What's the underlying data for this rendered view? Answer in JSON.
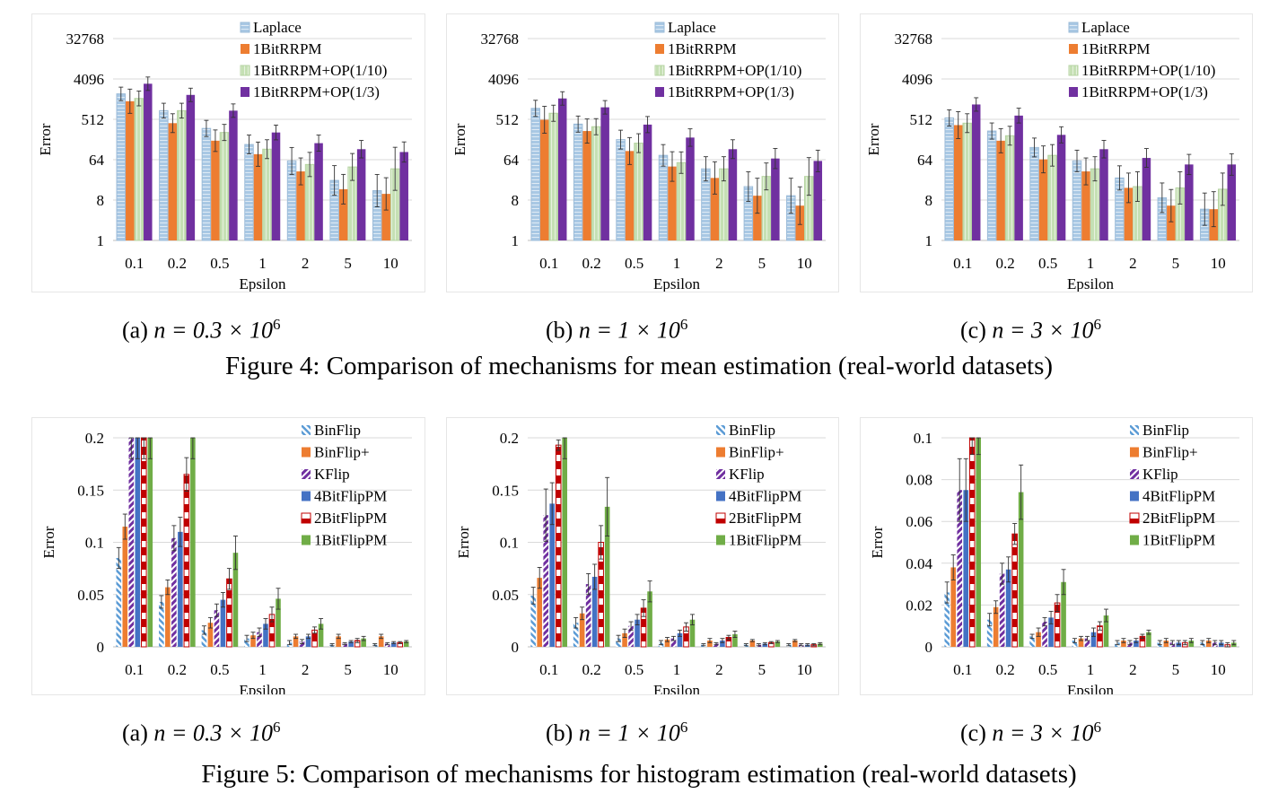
{
  "figure4": {
    "caption": "Figure 4: Comparison of mechanisms for mean estimation (real-world datasets)",
    "subcaptions": [
      {
        "label": "(a)",
        "math": "n = 0.3 × 10",
        "exp": "6"
      },
      {
        "label": "(b)",
        "math": "n = 1 × 10",
        "exp": "6"
      },
      {
        "label": "(c)",
        "math": "n = 3 × 10",
        "exp": "6"
      }
    ]
  },
  "figure5": {
    "caption": "Figure 5: Comparison of mechanisms for histogram estimation (real-world datasets)",
    "subcaptions": [
      {
        "label": "(a)",
        "math": "n = 0.3 × 10",
        "exp": "6"
      },
      {
        "label": "(b)",
        "math": "n = 1 × 10",
        "exp": "6"
      },
      {
        "label": "(c)",
        "math": "n = 3 × 10",
        "exp": "6"
      }
    ]
  },
  "colors": {
    "laplace": "#a9c8e4",
    "orange": "#ed7d31",
    "green_light": "#c5e0b4",
    "purple": "#7030a0",
    "binflip": "#5b9bd5",
    "kflip": "#7030a0",
    "blue": "#4472c4",
    "red": "#c00000",
    "green": "#70ad47"
  },
  "chart_data": [
    {
      "id": "fig4a",
      "type": "bar",
      "scale": "log2",
      "title": "",
      "xlabel": "Epsilon",
      "ylabel": "Error",
      "categories": [
        "0.1",
        "0.2",
        "0.5",
        "1",
        "2",
        "5",
        "10"
      ],
      "yticks": [
        "1",
        "8",
        "64",
        "512",
        "4096",
        "32768"
      ],
      "ylim": [
        1,
        32768
      ],
      "legend": "top-right",
      "series": [
        {
          "name": "Laplace",
          "values": [
            1900,
            800,
            320,
            140,
            60,
            22,
            13
          ],
          "err": [
            0.5,
            0.55,
            0.6,
            0.7,
            1.0,
            1.1,
            1.2
          ]
        },
        {
          "name": "1BitRRPM",
          "values": [
            1300,
            420,
            170,
            85,
            35,
            14,
            11
          ],
          "err": [
            0.9,
            0.7,
            0.8,
            0.9,
            1.0,
            1.1,
            1.2
          ]
        },
        {
          "name": "1BitRRPM+OP(1/10)",
          "values": [
            1500,
            800,
            260,
            110,
            50,
            44,
            40
          ],
          "err": [
            0.55,
            0.55,
            0.6,
            0.7,
            0.9,
            1.0,
            1.6
          ]
        },
        {
          "name": "1BitRRPM+OP(1/3)",
          "values": [
            3200,
            1800,
            800,
            260,
            150,
            110,
            95
          ],
          "err": [
            0.5,
            0.5,
            0.5,
            0.55,
            0.6,
            0.65,
            0.75
          ]
        }
      ]
    },
    {
      "id": "fig4b",
      "type": "bar",
      "scale": "log2",
      "title": "",
      "xlabel": "Epsilon",
      "ylabel": "Error",
      "categories": [
        "0.1",
        "0.2",
        "0.5",
        "1",
        "2",
        "5",
        "10"
      ],
      "yticks": [
        "1",
        "8",
        "64",
        "512",
        "4096",
        "32768"
      ],
      "ylim": [
        1,
        32768
      ],
      "legend": "top-right",
      "series": [
        {
          "name": "Laplace",
          "values": [
            900,
            400,
            180,
            80,
            40,
            16,
            10
          ],
          "err": [
            0.6,
            0.6,
            0.7,
            0.8,
            0.9,
            1.1,
            1.3
          ]
        },
        {
          "name": "1BitRRPM",
          "values": [
            500,
            280,
            100,
            45,
            25,
            10,
            6
          ],
          "err": [
            1.0,
            0.9,
            1.0,
            1.1,
            1.2,
            1.3,
            1.4
          ]
        },
        {
          "name": "1BitRRPM+OP(1/10)",
          "values": [
            700,
            350,
            150,
            55,
            40,
            27,
            27
          ],
          "err": [
            0.6,
            0.6,
            0.7,
            0.8,
            0.9,
            1.0,
            1.4
          ]
        },
        {
          "name": "1BitRRPM+OP(1/3)",
          "values": [
            1500,
            950,
            390,
            200,
            110,
            68,
            60
          ],
          "err": [
            0.5,
            0.5,
            0.6,
            0.65,
            0.7,
            0.75,
            0.8
          ]
        }
      ]
    },
    {
      "id": "fig4c",
      "type": "bar",
      "scale": "log2",
      "title": "",
      "xlabel": "Epsilon",
      "ylabel": "Error",
      "categories": [
        "0.1",
        "0.2",
        "0.5",
        "1",
        "2",
        "5",
        "10"
      ],
      "yticks": [
        "1",
        "8",
        "64",
        "512",
        "4096",
        "32768"
      ],
      "ylim": [
        1,
        32768
      ],
      "legend": "top-right",
      "series": [
        {
          "name": "Laplace",
          "values": [
            550,
            280,
            120,
            60,
            25,
            9,
            5
          ],
          "err": [
            0.6,
            0.6,
            0.7,
            0.8,
            0.9,
            1.1,
            1.2
          ]
        },
        {
          "name": "1BitRRPM",
          "values": [
            380,
            170,
            65,
            35,
            15,
            6,
            5
          ],
          "err": [
            1.0,
            0.9,
            1.0,
            1.0,
            1.1,
            1.2,
            1.3
          ]
        },
        {
          "name": "1BitRRPM+OP(1/10)",
          "values": [
            420,
            220,
            80,
            40,
            16,
            15,
            14
          ],
          "err": [
            0.7,
            0.7,
            0.8,
            0.9,
            1.1,
            1.2,
            1.2
          ]
        },
        {
          "name": "1BitRRPM+OP(1/3)",
          "values": [
            1100,
            620,
            230,
            110,
            70,
            50,
            50
          ],
          "err": [
            0.5,
            0.55,
            0.6,
            0.65,
            0.7,
            0.75,
            0.8
          ]
        }
      ]
    },
    {
      "id": "fig5a",
      "type": "bar",
      "scale": "linear",
      "title": "",
      "xlabel": "Epsilon",
      "ylabel": "Error",
      "categories": [
        "0.1",
        "0.2",
        "0.5",
        "1",
        "2",
        "5",
        "10"
      ],
      "yticks": [
        "0",
        "0.05",
        "0.1",
        "0.15",
        "0.2"
      ],
      "ylim": [
        0,
        0.2
      ],
      "legend": "top-right",
      "series": [
        {
          "name": "BinFlip",
          "values": [
            0.085,
            0.043,
            0.016,
            0.008,
            0.004,
            0.002,
            0.002
          ],
          "err": [
            0.01,
            0.006,
            0.004,
            0.003,
            0.002,
            0.001,
            0.001
          ]
        },
        {
          "name": "BinFlip+",
          "values": [
            0.115,
            0.057,
            0.023,
            0.011,
            0.01,
            0.01,
            0.01
          ],
          "err": [
            0.012,
            0.007,
            0.005,
            0.003,
            0.002,
            0.002,
            0.002
          ]
        },
        {
          "name": "KFlip",
          "values": [
            0.2,
            0.104,
            0.035,
            0.014,
            0.005,
            0.003,
            0.003
          ],
          "err": [
            0.02,
            0.012,
            0.006,
            0.004,
            0.002,
            0.001,
            0.001
          ]
        },
        {
          "name": "4BitFlipPM",
          "values": [
            0.2,
            0.11,
            0.045,
            0.022,
            0.01,
            0.005,
            0.004
          ],
          "err": [
            0.02,
            0.014,
            0.007,
            0.005,
            0.002,
            0.001,
            0.001
          ]
        },
        {
          "name": "2BitFlipPM",
          "values": [
            0.2,
            0.165,
            0.065,
            0.031,
            0.016,
            0.006,
            0.004
          ],
          "err": [
            0.02,
            0.016,
            0.01,
            0.007,
            0.003,
            0.002,
            0.001
          ]
        },
        {
          "name": "1BitFlipPM",
          "values": [
            0.2,
            0.2,
            0.09,
            0.046,
            0.022,
            0.008,
            0.005
          ],
          "err": [
            0.02,
            0.02,
            0.016,
            0.01,
            0.005,
            0.002,
            0.001
          ]
        }
      ]
    },
    {
      "id": "fig5b",
      "type": "bar",
      "scale": "linear",
      "title": "",
      "xlabel": "Epsilon",
      "ylabel": "Error",
      "categories": [
        "0.1",
        "0.2",
        "0.5",
        "1",
        "2",
        "5",
        "10"
      ],
      "yticks": [
        "0",
        "0.05",
        "0.1",
        "0.15",
        "0.2"
      ],
      "ylim": [
        0,
        0.2
      ],
      "legend": "top-right",
      "series": [
        {
          "name": "BinFlip",
          "values": [
            0.049,
            0.023,
            0.008,
            0.004,
            0.002,
            0.002,
            0.002
          ],
          "err": [
            0.008,
            0.005,
            0.003,
            0.002,
            0.001,
            0.001,
            0.001
          ]
        },
        {
          "name": "BinFlip+",
          "values": [
            0.066,
            0.032,
            0.013,
            0.007,
            0.006,
            0.006,
            0.006
          ],
          "err": [
            0.01,
            0.006,
            0.004,
            0.002,
            0.002,
            0.001,
            0.001
          ]
        },
        {
          "name": "KFlip",
          "values": [
            0.126,
            0.06,
            0.02,
            0.008,
            0.003,
            0.002,
            0.002
          ],
          "err": [
            0.025,
            0.01,
            0.004,
            0.002,
            0.001,
            0.001,
            0.001
          ]
        },
        {
          "name": "4BitFlipPM",
          "values": [
            0.137,
            0.067,
            0.026,
            0.013,
            0.006,
            0.003,
            0.002
          ],
          "err": [
            0.02,
            0.012,
            0.005,
            0.003,
            0.002,
            0.001,
            0.001
          ]
        },
        {
          "name": "2BitFlipPM",
          "values": [
            0.193,
            0.1,
            0.037,
            0.019,
            0.009,
            0.004,
            0.002
          ],
          "err": [
            0.005,
            0.016,
            0.008,
            0.004,
            0.002,
            0.001,
            0.001
          ]
        },
        {
          "name": "1BitFlipPM",
          "values": [
            0.2,
            0.134,
            0.053,
            0.026,
            0.012,
            0.005,
            0.003
          ],
          "err": [
            0.02,
            0.028,
            0.01,
            0.005,
            0.003,
            0.001,
            0.001
          ]
        }
      ]
    },
    {
      "id": "fig5c",
      "type": "bar",
      "scale": "linear",
      "title": "",
      "xlabel": "Epsilon",
      "ylabel": "Error",
      "categories": [
        "0.1",
        "0.2",
        "0.5",
        "1",
        "2",
        "5",
        "10"
      ],
      "yticks": [
        "0",
        "0.02",
        "0.04",
        "0.06",
        "0.08",
        "0.1"
      ],
      "ylim": [
        0,
        0.1
      ],
      "legend": "top-right",
      "series": [
        {
          "name": "BinFlip",
          "values": [
            0.026,
            0.013,
            0.005,
            0.003,
            0.002,
            0.002,
            0.002
          ],
          "err": [
            0.005,
            0.003,
            0.001,
            0.001,
            0.001,
            0.001,
            0.001
          ]
        },
        {
          "name": "BinFlip+",
          "values": [
            0.038,
            0.019,
            0.007,
            0.004,
            0.003,
            0.003,
            0.003
          ],
          "err": [
            0.006,
            0.003,
            0.002,
            0.001,
            0.001,
            0.001,
            0.001
          ]
        },
        {
          "name": "KFlip",
          "values": [
            0.075,
            0.035,
            0.012,
            0.004,
            0.002,
            0.002,
            0.002
          ],
          "err": [
            0.015,
            0.005,
            0.002,
            0.001,
            0.001,
            0.001,
            0.001
          ]
        },
        {
          "name": "4BitFlipPM",
          "values": [
            0.075,
            0.037,
            0.014,
            0.007,
            0.003,
            0.002,
            0.002
          ],
          "err": [
            0.015,
            0.006,
            0.003,
            0.002,
            0.001,
            0.001,
            0.001
          ]
        },
        {
          "name": "2BitFlipPM",
          "values": [
            0.1,
            0.054,
            0.021,
            0.01,
            0.005,
            0.002,
            0.001
          ],
          "err": [
            0.008,
            0.005,
            0.004,
            0.002,
            0.001,
            0.001,
            0.001
          ]
        },
        {
          "name": "1BitFlipPM",
          "values": [
            0.1,
            0.074,
            0.031,
            0.015,
            0.007,
            0.003,
            0.002
          ],
          "err": [
            0.008,
            0.013,
            0.006,
            0.003,
            0.001,
            0.001,
            0.001
          ]
        }
      ]
    }
  ]
}
